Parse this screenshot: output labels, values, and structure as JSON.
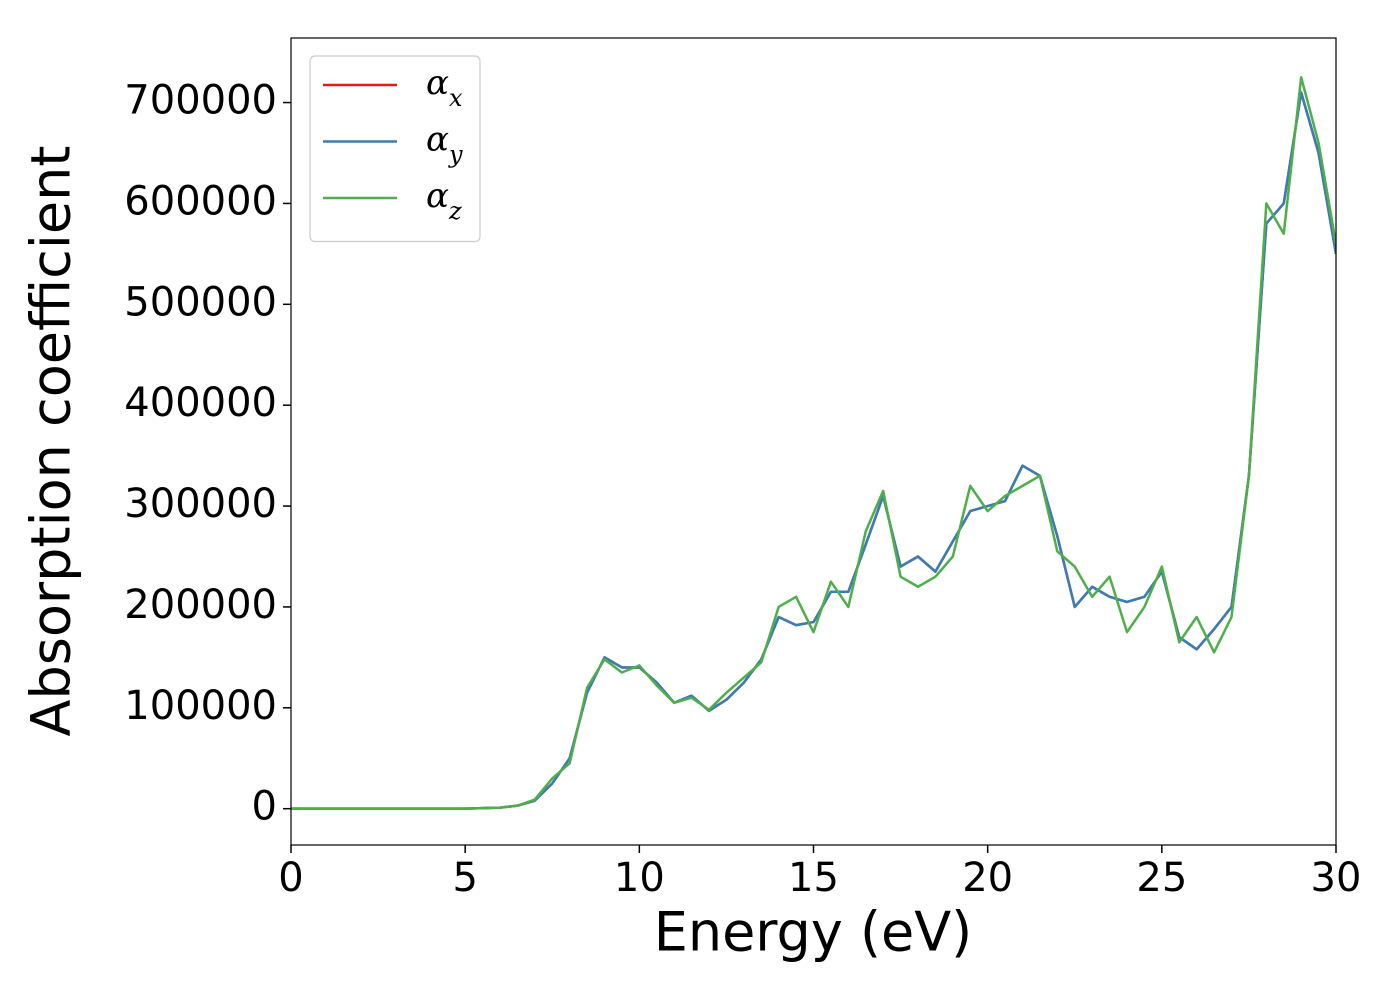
{
  "chart_data": {
    "type": "line",
    "xlabel": "Energy (eV)",
    "ylabel": "Absorption coefficient",
    "x": [
      0,
      0.5,
      1,
      1.5,
      2,
      2.5,
      3,
      3.5,
      4,
      4.5,
      5,
      5.5,
      6,
      6.5,
      7,
      7.5,
      8,
      8.5,
      9,
      9.5,
      10,
      10.5,
      11,
      11.5,
      12,
      12.5,
      13,
      13.5,
      14,
      14.5,
      15,
      15.5,
      16,
      16.5,
      17,
      17.5,
      18,
      18.5,
      19,
      19.5,
      20,
      20.5,
      21,
      21.5,
      22,
      22.5,
      23,
      23.5,
      24,
      24.5,
      25,
      25.5,
      26,
      26.5,
      27,
      27.5,
      28,
      28.5,
      29,
      29.5,
      30
    ],
    "series": [
      {
        "name": "α_x",
        "color": "#e41a1c",
        "values": [
          0,
          0,
          0,
          0,
          0,
          0,
          0,
          0,
          0,
          0,
          0,
          500,
          1000,
          3000,
          8000,
          25000,
          50000,
          115000,
          150000,
          140000,
          140000,
          125000,
          105000,
          112000,
          97000,
          108000,
          125000,
          148000,
          190000,
          182000,
          185000,
          215000,
          215000,
          262000,
          310000,
          240000,
          250000,
          235000,
          265000,
          295000,
          300000,
          305000,
          340000,
          330000,
          270000,
          200000,
          220000,
          210000,
          205000,
          210000,
          235000,
          170000,
          158000,
          178000,
          200000,
          330000,
          580000,
          600000,
          710000,
          650000,
          550000
        ]
      },
      {
        "name": "α_y",
        "color": "#377eb8",
        "values": [
          0,
          0,
          0,
          0,
          0,
          0,
          0,
          0,
          0,
          0,
          0,
          500,
          1000,
          3000,
          8000,
          25000,
          50000,
          115000,
          150000,
          140000,
          140000,
          125000,
          105000,
          112000,
          97000,
          108000,
          125000,
          148000,
          190000,
          182000,
          185000,
          215000,
          215000,
          262000,
          310000,
          240000,
          250000,
          235000,
          265000,
          295000,
          300000,
          305000,
          340000,
          330000,
          270000,
          200000,
          220000,
          210000,
          205000,
          210000,
          235000,
          170000,
          158000,
          178000,
          200000,
          330000,
          580000,
          600000,
          710000,
          650000,
          550000
        ]
      },
      {
        "name": "α_z",
        "color": "#4daf4a",
        "values": [
          0,
          0,
          0,
          0,
          0,
          0,
          0,
          0,
          0,
          0,
          0,
          500,
          1000,
          3000,
          9000,
          30000,
          45000,
          120000,
          148000,
          135000,
          142000,
          122000,
          105000,
          110000,
          98000,
          115000,
          130000,
          145000,
          200000,
          210000,
          175000,
          225000,
          200000,
          275000,
          315000,
          230000,
          220000,
          230000,
          250000,
          320000,
          295000,
          310000,
          320000,
          330000,
          255000,
          240000,
          210000,
          230000,
          175000,
          200000,
          240000,
          165000,
          190000,
          155000,
          190000,
          330000,
          600000,
          570000,
          725000,
          660000,
          560000
        ]
      }
    ],
    "xlim": [
      0,
      30
    ],
    "xticks": [
      0,
      5,
      10,
      15,
      20,
      25,
      30
    ],
    "ylim": [
      -36000,
      764000
    ],
    "yticks": [
      0,
      100000,
      200000,
      300000,
      400000,
      500000,
      600000,
      700000
    ],
    "legend": "upper-left"
  }
}
